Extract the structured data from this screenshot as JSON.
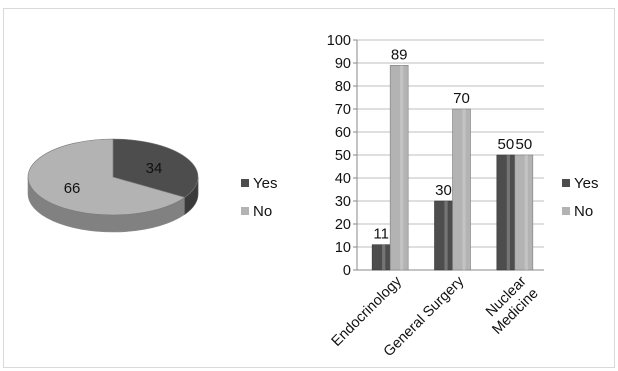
{
  "chart_data": [
    {
      "type": "pie",
      "title": "",
      "slices": [
        {
          "label": "Yes",
          "value": 34,
          "color": "#4d4d4d"
        },
        {
          "label": "No",
          "value": 66,
          "color": "#b3b3b3"
        }
      ],
      "legend": {
        "placement": "right",
        "entries": [
          "Yes",
          "No"
        ]
      },
      "three_d": true
    },
    {
      "type": "bar",
      "title": "",
      "xlabel": "",
      "ylabel": "",
      "categories": [
        "Endocrinology",
        "General Surgery",
        "Nuclear Medicine"
      ],
      "series": [
        {
          "name": "Yes",
          "values": [
            11,
            30,
            50
          ],
          "color": "#4d4d4d"
        },
        {
          "name": "No",
          "values": [
            89,
            70,
            50
          ],
          "color": "#b3b3b3"
        }
      ],
      "ylim": [
        0,
        100
      ],
      "yticks": [
        0,
        10,
        20,
        30,
        40,
        50,
        60,
        70,
        80,
        90,
        100
      ],
      "grid": true,
      "data_labels": true,
      "legend": {
        "placement": "right",
        "entries": [
          "Yes",
          "No"
        ]
      }
    }
  ]
}
